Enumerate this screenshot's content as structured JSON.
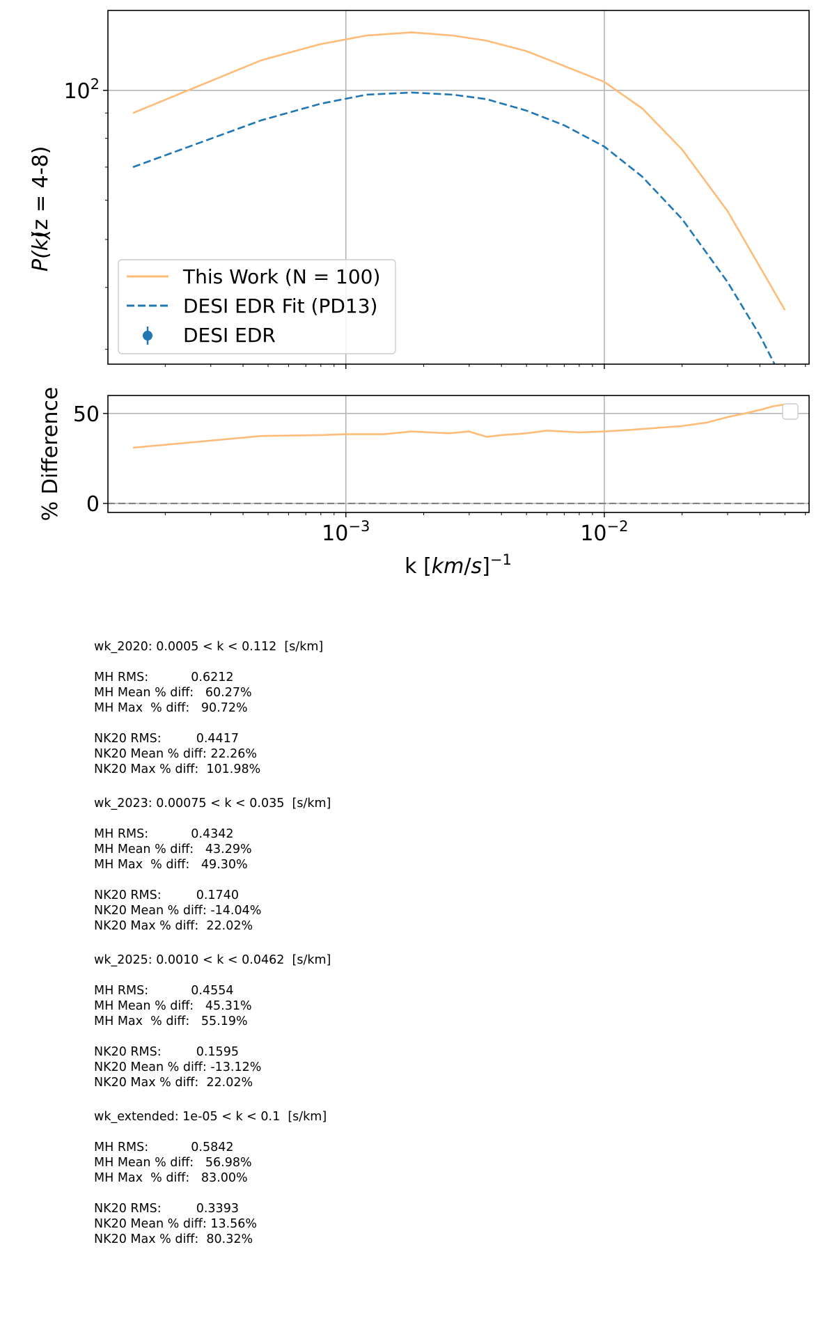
{
  "chart_data": [
    {
      "type": "line",
      "x_scale": "log",
      "y_scale": "log",
      "xlim": [
        0.00012,
        0.062
      ],
      "ylim": [
        28,
        145
      ],
      "yticks": [
        {
          "value": 100,
          "label": "10^2"
        }
      ],
      "xticks": [
        {
          "value": 0.001,
          "label": "10^-3"
        },
        {
          "value": 0.01,
          "label": "10^-2"
        }
      ],
      "ylabel_main": "P(k)",
      "ylabel_suffix": "(z = 4-8)",
      "grid": true,
      "legend_position": "lower-left",
      "series": [
        {
          "name": "This Work (N = 100)",
          "color": "#ffbb78",
          "style": "solid",
          "points": [
            [
              0.00015,
              90
            ],
            [
              0.00047,
              115
            ],
            [
              0.0008,
              124
            ],
            [
              0.0012,
              129
            ],
            [
              0.0018,
              131
            ],
            [
              0.0026,
              129
            ],
            [
              0.0035,
              126
            ],
            [
              0.005,
              120
            ],
            [
              0.007,
              112
            ],
            [
              0.01,
              104
            ],
            [
              0.014,
              92
            ],
            [
              0.02,
              76
            ],
            [
              0.03,
              57
            ],
            [
              0.04,
              44
            ],
            [
              0.05,
              36
            ]
          ]
        },
        {
          "name": "DESI EDR Fit (PD13)",
          "color": "#1f77b4",
          "style": "dashed",
          "points": [
            [
              0.00015,
              70
            ],
            [
              0.00047,
              87
            ],
            [
              0.0008,
              94
            ],
            [
              0.0012,
              98
            ],
            [
              0.0018,
              99
            ],
            [
              0.0026,
              98
            ],
            [
              0.0035,
              96
            ],
            [
              0.005,
              91
            ],
            [
              0.007,
              85
            ],
            [
              0.01,
              77
            ],
            [
              0.014,
              67
            ],
            [
              0.02,
              55
            ],
            [
              0.03,
              41
            ],
            [
              0.04,
              32
            ],
            [
              0.05,
              25.5
            ]
          ]
        },
        {
          "name": "DESI EDR",
          "color": "#1f77b4",
          "style": "errorbar",
          "points": []
        }
      ]
    },
    {
      "type": "line",
      "x_scale": "log",
      "xlim": [
        0.00012,
        0.062
      ],
      "ylim": [
        -5,
        60
      ],
      "yticks": [
        {
          "value": 0,
          "label": "0"
        },
        {
          "value": 50,
          "label": "50"
        }
      ],
      "xticks": [
        {
          "value": 0.001,
          "label": "10^-3"
        },
        {
          "value": 0.01,
          "label": "10^-2"
        }
      ],
      "ylabel": "% Difference",
      "xlabel": "k [km/s]^-1",
      "grid": true,
      "series": [
        {
          "color": "#ffbb78",
          "style": "solid",
          "points": [
            [
              0.00015,
              31
            ],
            [
              0.00047,
              37.5
            ],
            [
              0.0008,
              38
            ],
            [
              0.001,
              38.5
            ],
            [
              0.0014,
              38.5
            ],
            [
              0.0018,
              40
            ],
            [
              0.0025,
              39
            ],
            [
              0.003,
              40
            ],
            [
              0.0035,
              37
            ],
            [
              0.004,
              38
            ],
            [
              0.005,
              39
            ],
            [
              0.006,
              40.5
            ],
            [
              0.008,
              39.5
            ],
            [
              0.01,
              40
            ],
            [
              0.013,
              41
            ],
            [
              0.016,
              42
            ],
            [
              0.02,
              43
            ],
            [
              0.025,
              45
            ],
            [
              0.03,
              48
            ],
            [
              0.035,
              50
            ],
            [
              0.04,
              52
            ],
            [
              0.045,
              54
            ],
            [
              0.05,
              55
            ]
          ]
        }
      ],
      "reference_line": {
        "value": 0,
        "color": "#808080",
        "style": "dashed"
      }
    }
  ],
  "stats": [
    {
      "header": "wk_2020: 0.0005 < k < 0.112  [s/km]",
      "mh": [
        "MH RMS:           0.6212",
        "MH Mean % diff:   60.27%",
        "MH Max  % diff:   90.72%"
      ],
      "nk": [
        "NK20 RMS:         0.4417",
        "NK20 Mean % diff: 22.26%",
        "NK20 Max % diff:  101.98%"
      ]
    },
    {
      "header": "wk_2023: 0.00075 < k < 0.035  [s/km]",
      "mh": [
        "MH RMS:           0.4342",
        "MH Mean % diff:   43.29%",
        "MH Max  % diff:   49.30%"
      ],
      "nk": [
        "NK20 RMS:         0.1740",
        "NK20 Mean % diff: -14.04%",
        "NK20 Max % diff:  22.02%"
      ]
    },
    {
      "header": "wk_2025: 0.0010 < k < 0.0462  [s/km]",
      "mh": [
        "MH RMS:           0.4554",
        "MH Mean % diff:   45.31%",
        "MH Max  % diff:   55.19%"
      ],
      "nk": [
        "NK20 RMS:         0.1595",
        "NK20 Mean % diff: -13.12%",
        "NK20 Max % diff:  22.02%"
      ]
    },
    {
      "header": "wk_extended: 1e-05 < k < 0.1  [s/km]",
      "mh": [
        "MH RMS:           0.5842",
        "MH Mean % diff:   56.98%",
        "MH Max  % diff:   83.00%"
      ],
      "nk": [
        "NK20 RMS:         0.3393",
        "NK20 Mean % diff: 13.56%",
        "NK20 Max % diff:  80.32%"
      ]
    }
  ]
}
